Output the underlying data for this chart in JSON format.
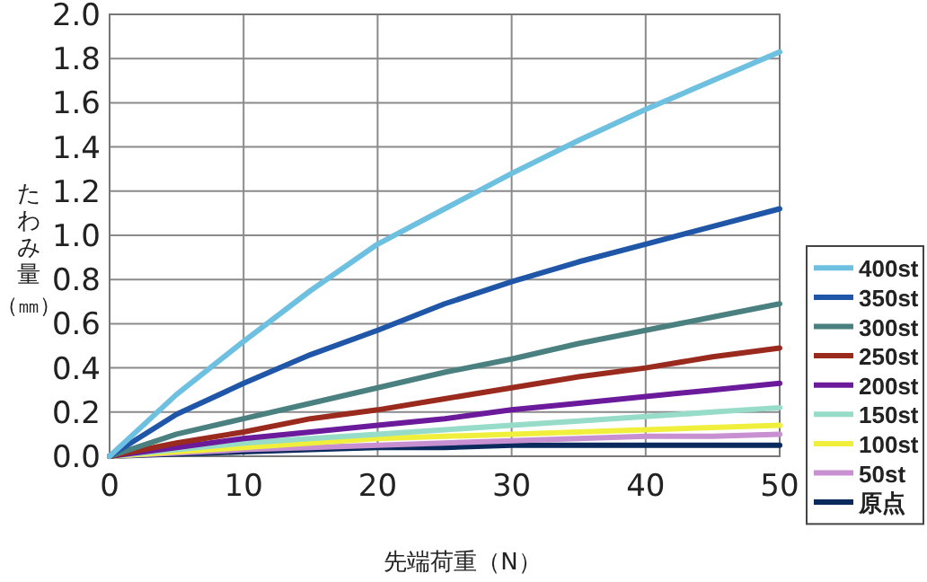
{
  "chart_data": {
    "type": "line",
    "xlabel": "先端荷重（N）",
    "ylabel": "たわみ量（㎜）",
    "x": [
      0,
      5,
      10,
      15,
      20,
      25,
      30,
      35,
      40,
      45,
      50
    ],
    "series": [
      {
        "name": "400st",
        "color": "#6ec0e0",
        "values": [
          0,
          0.28,
          0.52,
          0.75,
          0.96,
          1.12,
          1.28,
          1.43,
          1.57,
          1.7,
          1.83
        ]
      },
      {
        "name": "350st",
        "color": "#1f56a8",
        "values": [
          0,
          0.19,
          0.33,
          0.46,
          0.57,
          0.69,
          0.79,
          0.88,
          0.96,
          1.04,
          1.12
        ]
      },
      {
        "name": "300st",
        "color": "#4a8080",
        "values": [
          0,
          0.1,
          0.17,
          0.24,
          0.31,
          0.38,
          0.44,
          0.51,
          0.57,
          0.63,
          0.69
        ]
      },
      {
        "name": "250st",
        "color": "#9b2a1e",
        "values": [
          0,
          0.06,
          0.11,
          0.17,
          0.21,
          0.26,
          0.31,
          0.36,
          0.4,
          0.45,
          0.49
        ]
      },
      {
        "name": "200st",
        "color": "#6a1a9a",
        "values": [
          0,
          0.04,
          0.08,
          0.11,
          0.14,
          0.17,
          0.21,
          0.24,
          0.27,
          0.3,
          0.33
        ]
      },
      {
        "name": "150st",
        "color": "#96dcc8",
        "values": [
          0,
          0.03,
          0.06,
          0.08,
          0.1,
          0.12,
          0.14,
          0.16,
          0.18,
          0.2,
          0.22
        ]
      },
      {
        "name": "100st",
        "color": "#f0f03c",
        "values": [
          0,
          0.02,
          0.04,
          0.06,
          0.08,
          0.09,
          0.1,
          0.11,
          0.12,
          0.13,
          0.14
        ]
      },
      {
        "name": "50st",
        "color": "#c890d0",
        "values": [
          0,
          null,
          0.03,
          0.04,
          0.05,
          0.06,
          0.07,
          0.08,
          0.09,
          0.09,
          0.1
        ]
      },
      {
        "name": "原点",
        "color": "#0a2a5e",
        "values": [
          0,
          0.01,
          0.02,
          0.03,
          0.04,
          0.04,
          0.05,
          0.05,
          0.05,
          0.05,
          0.05
        ]
      }
    ],
    "xlim": [
      0,
      50
    ],
    "ylim": [
      0,
      2.0
    ],
    "xticks": [
      0,
      10,
      20,
      30,
      40,
      50
    ],
    "yticks": [
      {
        "value": 0,
        "label": "0.0"
      },
      {
        "value": 0.2,
        "label": "0.2"
      },
      {
        "value": 0.4,
        "label": "0.4"
      },
      {
        "value": 0.6,
        "label": "0.6"
      },
      {
        "value": 0.8,
        "label": "0.8"
      },
      {
        "value": 1.0,
        "label": "1.0"
      },
      {
        "value": 1.2,
        "label": "1.2"
      },
      {
        "value": 1.4,
        "label": "1.4"
      },
      {
        "value": 1.6,
        "label": "1.6"
      },
      {
        "value": 1.8,
        "label": "1.8"
      },
      {
        "value": 2.0,
        "label": "2.0"
      }
    ],
    "grid": true,
    "legend": "right",
    "marker": "none",
    "line_style": "solid"
  }
}
